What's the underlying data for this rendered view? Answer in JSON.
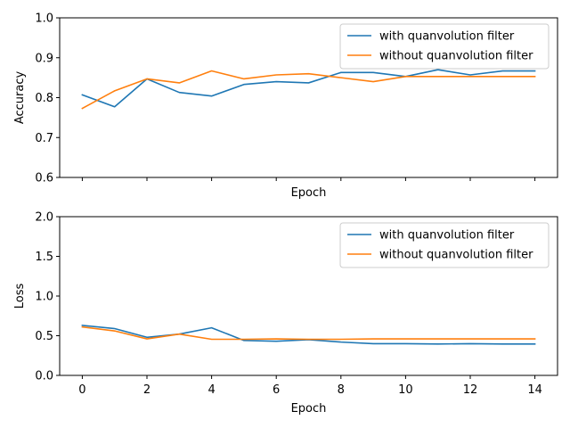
{
  "colors": {
    "with": "#1f77b4",
    "without": "#ff7f0e",
    "axis": "#000000",
    "legend_border": "#cccccc"
  },
  "chart_data": [
    {
      "type": "line",
      "ylabel": "Accuracy",
      "xlabel": "Epoch",
      "xlim": [
        -0.7,
        14.7
      ],
      "ylim": [
        0.6,
        1.0
      ],
      "xticks": [
        0,
        2,
        4,
        6,
        8,
        10,
        12,
        14
      ],
      "show_xtick_labels": false,
      "yticks": [
        0.6,
        0.7,
        0.8,
        0.9,
        1.0
      ],
      "ytick_labels": [
        "0.6",
        "0.7",
        "0.8",
        "0.9",
        "1.0"
      ],
      "grid": false,
      "legend_position": "top-right",
      "x": [
        0,
        1,
        2,
        3,
        4,
        5,
        6,
        7,
        8,
        9,
        10,
        11,
        12,
        13,
        14
      ],
      "series": [
        {
          "name": "with quanvolution filter",
          "color_key": "with",
          "values": [
            0.807,
            0.777,
            0.847,
            0.813,
            0.804,
            0.833,
            0.84,
            0.837,
            0.863,
            0.863,
            0.853,
            0.87,
            0.857,
            0.867,
            0.867
          ]
        },
        {
          "name": "without quanvolution filter",
          "color_key": "without",
          "values": [
            0.773,
            0.817,
            0.847,
            0.837,
            0.867,
            0.847,
            0.857,
            0.86,
            0.85,
            0.84,
            0.853,
            0.853,
            0.853,
            0.853,
            0.853
          ]
        }
      ]
    },
    {
      "type": "line",
      "ylabel": "Loss",
      "xlabel": "Epoch",
      "xlim": [
        -0.7,
        14.7
      ],
      "ylim": [
        0.0,
        2.0
      ],
      "xticks": [
        0,
        2,
        4,
        6,
        8,
        10,
        12,
        14
      ],
      "xtick_labels": [
        "0",
        "2",
        "4",
        "6",
        "8",
        "10",
        "12",
        "14"
      ],
      "show_xtick_labels": true,
      "yticks": [
        0.0,
        0.5,
        1.0,
        1.5,
        2.0
      ],
      "ytick_labels": [
        "0.0",
        "0.5",
        "1.0",
        "1.5",
        "2.0"
      ],
      "grid": false,
      "legend_position": "top-right",
      "x": [
        0,
        1,
        2,
        3,
        4,
        5,
        6,
        7,
        8,
        9,
        10,
        11,
        12,
        13,
        14
      ],
      "series": [
        {
          "name": "with quanvolution filter",
          "color_key": "with",
          "values": [
            0.63,
            0.59,
            0.48,
            0.52,
            0.6,
            0.44,
            0.43,
            0.45,
            0.42,
            0.4,
            0.4,
            0.395,
            0.4,
            0.395,
            0.395
          ]
        },
        {
          "name": "without quanvolution filter",
          "color_key": "without",
          "values": [
            0.61,
            0.56,
            0.46,
            0.52,
            0.455,
            0.455,
            0.46,
            0.455,
            0.455,
            0.46,
            0.46,
            0.46,
            0.46,
            0.46,
            0.46
          ]
        }
      ]
    }
  ]
}
